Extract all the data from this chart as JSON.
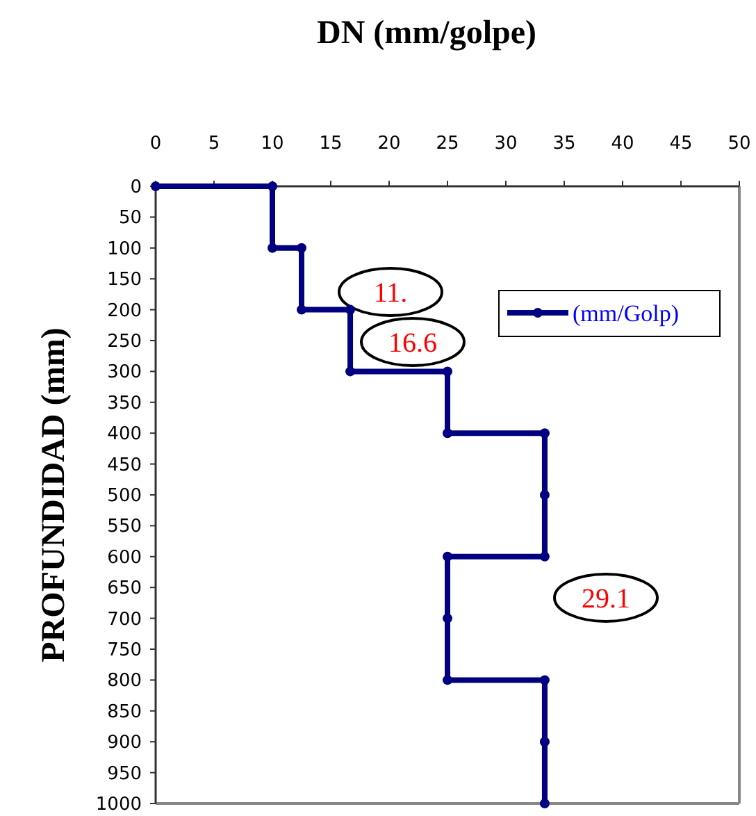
{
  "chart_data": {
    "type": "line",
    "title": "DN (mm/golpe)",
    "ylabel": "PROFUNDIDAD (mm)",
    "x": [
      0,
      10,
      10,
      12.5,
      12.5,
      16.67,
      16.67,
      25,
      25,
      33.33,
      33.33,
      33.33,
      25,
      25,
      25,
      33.33,
      33.33,
      33.33
    ],
    "series": [
      {
        "name": "(mm/Golp)",
        "color": "#000080",
        "values": [
          0,
          0,
          100,
          100,
          200,
          200,
          300,
          300,
          400,
          400,
          500,
          600,
          600,
          700,
          800,
          800,
          900,
          1000
        ]
      }
    ],
    "xlim": [
      0,
      50
    ],
    "xticks": [
      0,
      5,
      10,
      15,
      20,
      25,
      30,
      35,
      40,
      45,
      50
    ],
    "ylim": [
      1000,
      0
    ],
    "yticks": [
      0,
      50,
      100,
      150,
      200,
      250,
      300,
      350,
      400,
      450,
      500,
      550,
      600,
      650,
      700,
      750,
      800,
      850,
      900,
      950,
      1000
    ],
    "annotations": [
      "11.",
      "16.6",
      "29.1"
    ],
    "legend": "top right",
    "marker": "circle",
    "line_style": "solid",
    "grid": false
  }
}
